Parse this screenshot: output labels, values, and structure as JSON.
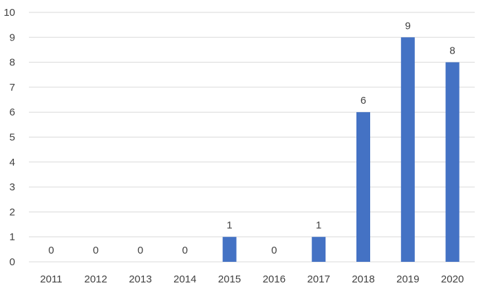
{
  "chart_data": {
    "type": "bar",
    "categories": [
      "2011",
      "2012",
      "2013",
      "2014",
      "2015",
      "2016",
      "2017",
      "2018",
      "2019",
      "2020"
    ],
    "values": [
      0,
      0,
      0,
      0,
      1,
      0,
      1,
      6,
      9,
      8
    ],
    "title": "",
    "xlabel": "",
    "ylabel": "",
    "ylim": [
      0,
      10
    ],
    "yticks": [
      "0",
      "1",
      "2",
      "3",
      "4",
      "5",
      "6",
      "7",
      "8",
      "9",
      "10"
    ],
    "data_labels": [
      "0",
      "0",
      "0",
      "0",
      "1",
      "0",
      "1",
      "6",
      "9",
      "8"
    ],
    "grid": true,
    "legend": "none",
    "bar_color": "#4472c4"
  }
}
